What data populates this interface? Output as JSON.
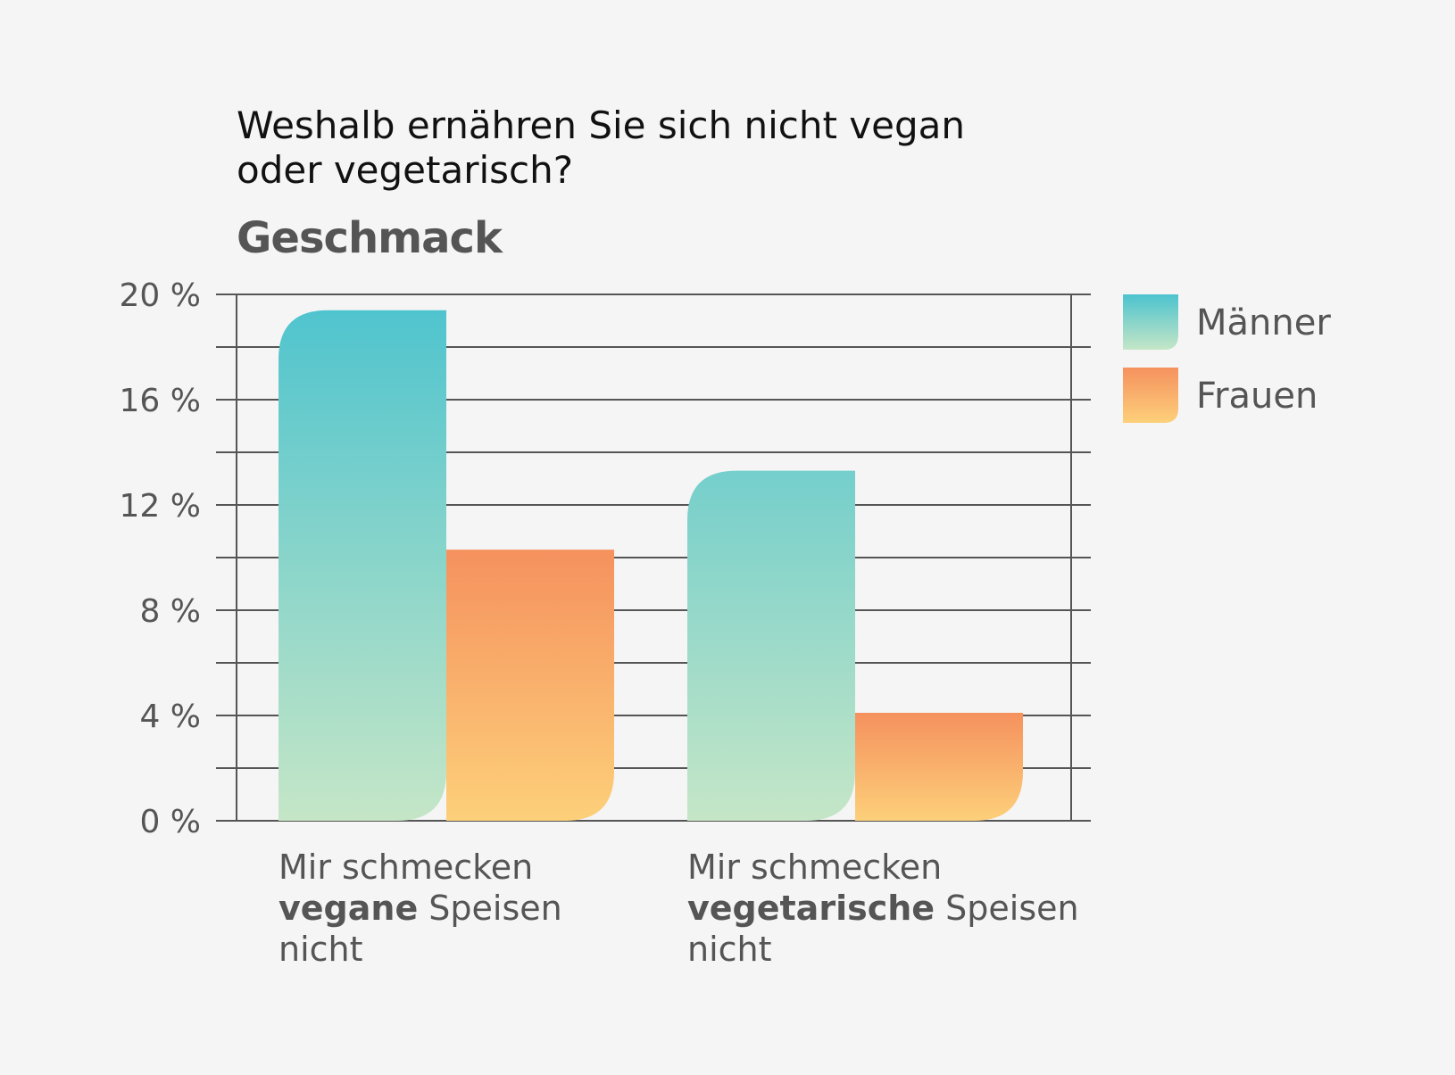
{
  "chart_data": {
    "type": "bar",
    "title": "Weshalb ernähren Sie sich nicht vegan oder vegetarisch?",
    "subtitle": "Geschmack",
    "categories": [
      "Mir schmecken vegane Speisen nicht",
      "Mir schmecken vegetarische Speisen nicht"
    ],
    "category_lines": [
      [
        [
          {
            "t": "Mir schmecken",
            "b": false
          }
        ],
        [
          {
            "t": "vegane",
            "b": true
          },
          {
            "t": " Speisen",
            "b": false
          }
        ],
        [
          {
            "t": "nicht",
            "b": false
          }
        ]
      ],
      [
        [
          {
            "t": "Mir schmecken",
            "b": false
          }
        ],
        [
          {
            "t": "vegetarische",
            "b": true
          },
          {
            "t": " Speisen",
            "b": false
          }
        ],
        [
          {
            "t": "nicht",
            "b": false
          }
        ]
      ]
    ],
    "series": [
      {
        "name": "Männer",
        "values": [
          19.4,
          13.3
        ],
        "colors": [
          "#4cc3ce",
          "#c5e6c7"
        ]
      },
      {
        "name": "Frauen",
        "values": [
          10.3,
          4.1
        ],
        "colors": [
          "#f5915e",
          "#fdd07a"
        ]
      }
    ],
    "ylim": [
      0,
      20
    ],
    "yticks": [
      0,
      4,
      8,
      12,
      16,
      20
    ],
    "ytick_labels": [
      "0 %",
      "4 %",
      "8 %",
      "12 %",
      "16 %",
      "20 %"
    ],
    "minor_gridlines": [
      2,
      6,
      10,
      14,
      18
    ],
    "grid": true,
    "legend_position": "right",
    "xlabel": "",
    "ylabel": ""
  }
}
